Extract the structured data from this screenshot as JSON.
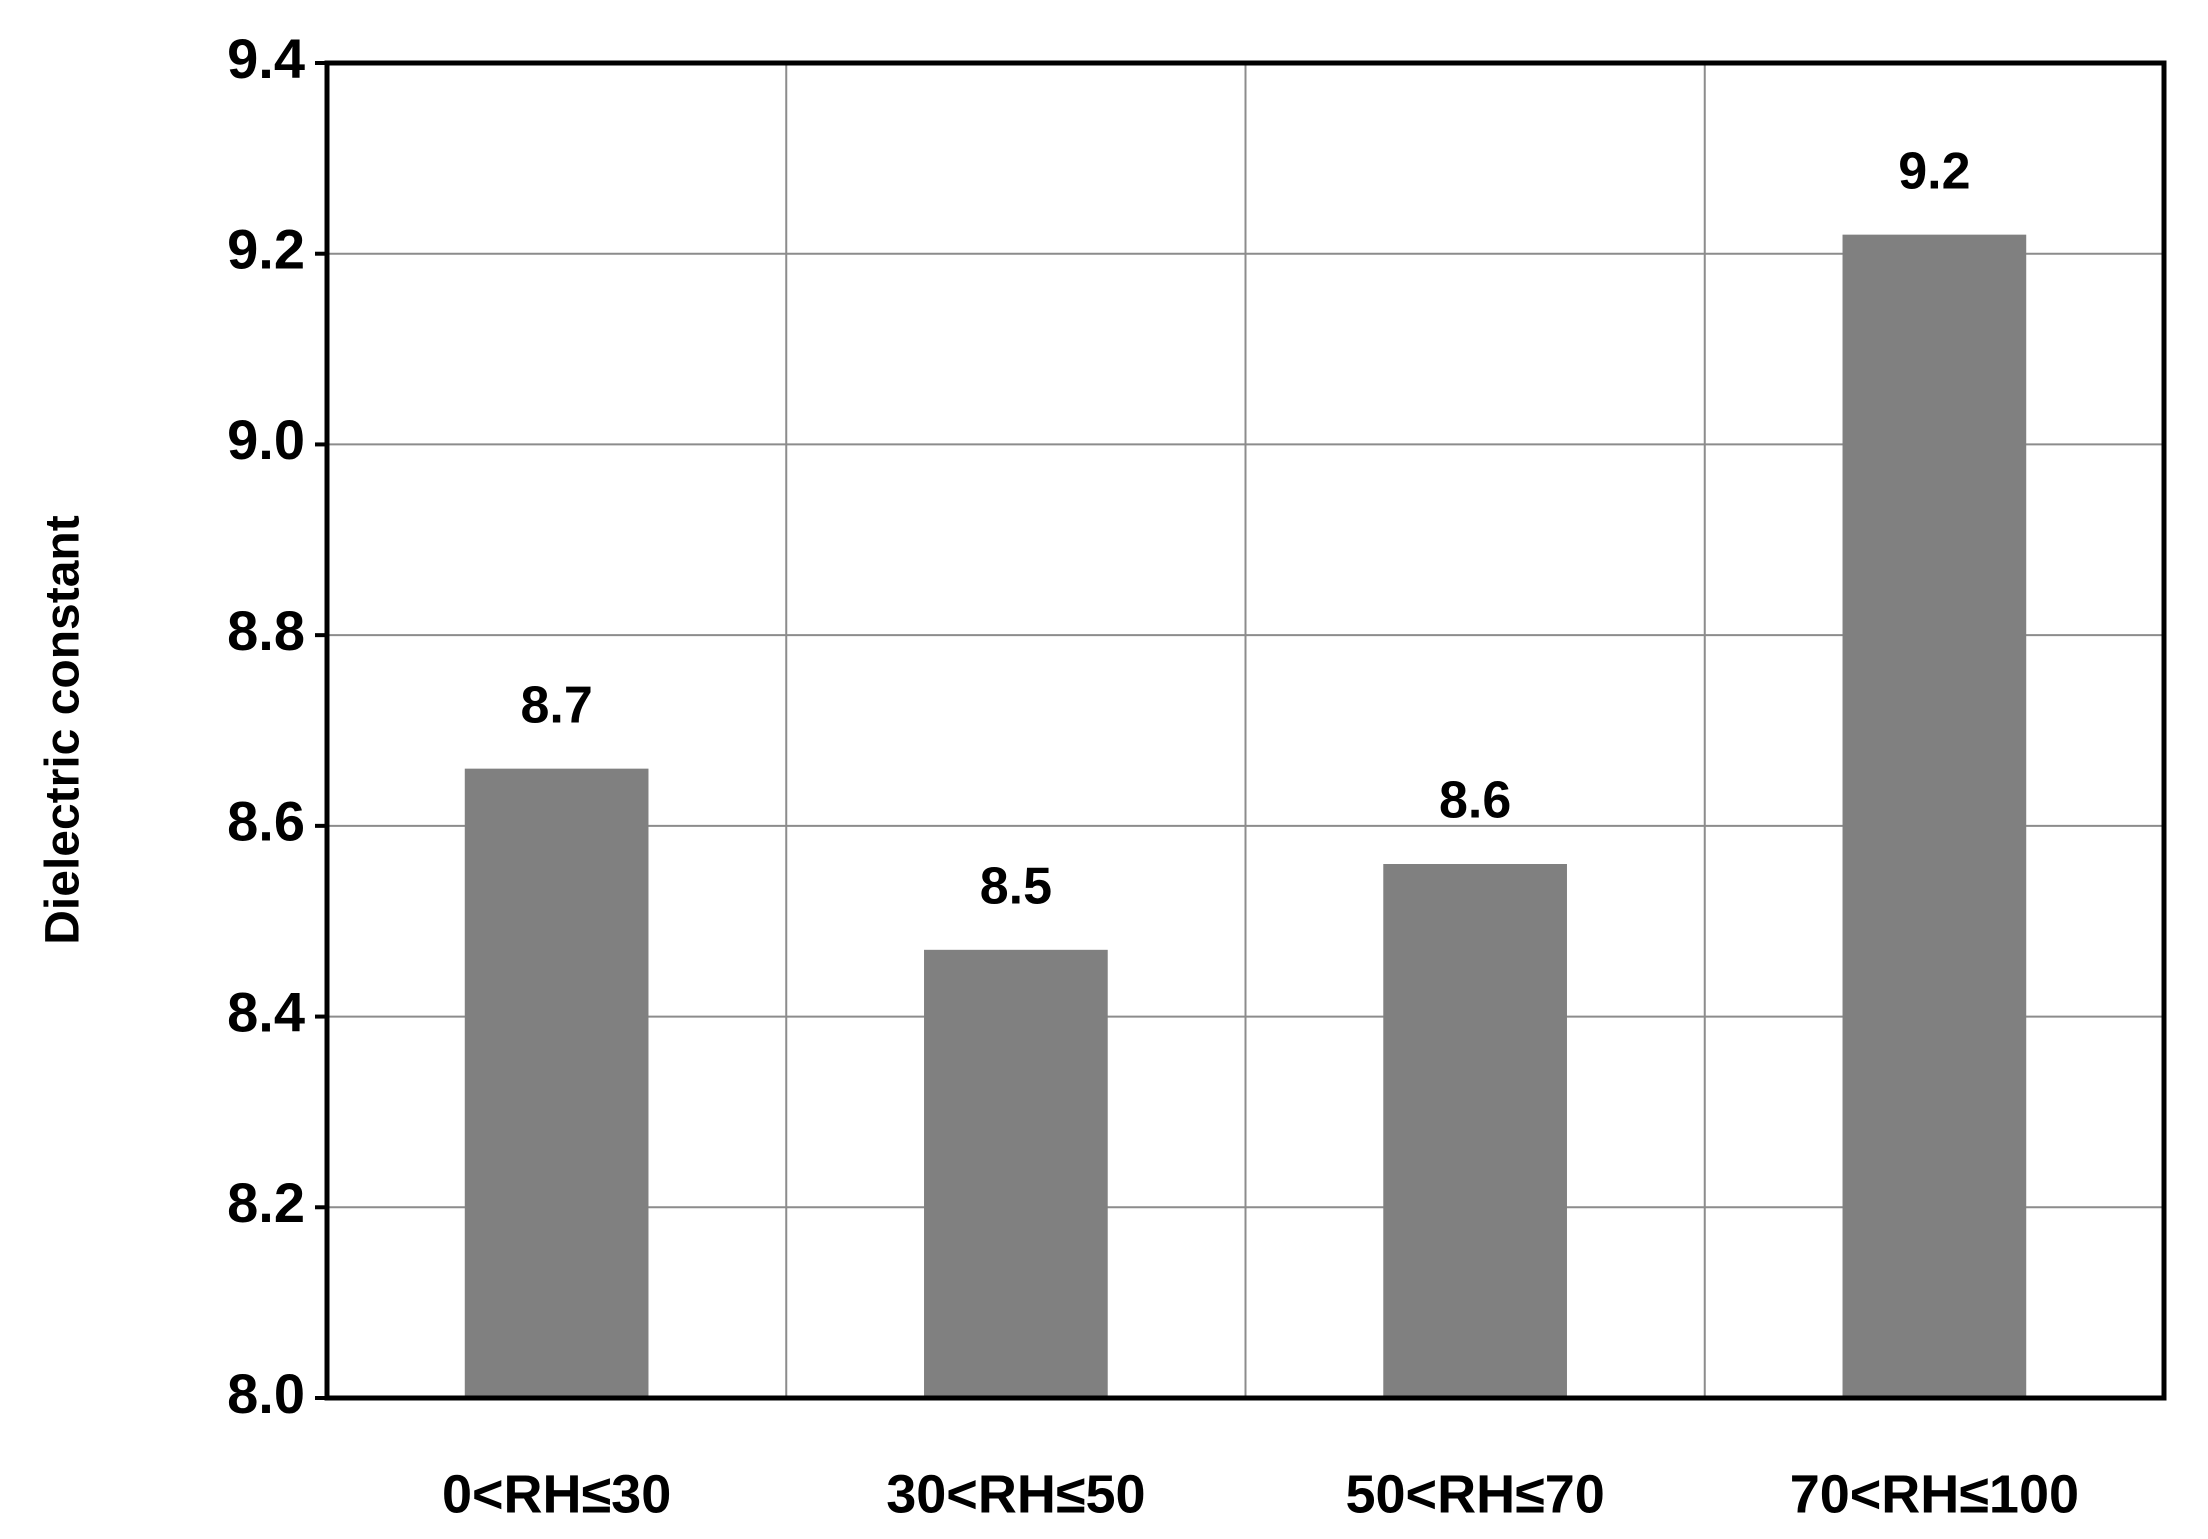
{
  "chart_data": {
    "type": "bar",
    "y_label": "Dielectric constant",
    "categories": [
      "0<RH≤30",
      "30<RH≤50",
      "50<RH≤70",
      "70<RH≤100"
    ],
    "values": [
      8.66,
      8.47,
      8.56,
      9.22
    ],
    "value_labels": [
      "8.7",
      "8.5",
      "8.6",
      "9.2"
    ],
    "color": "#808080",
    "ylim": [
      8.0,
      9.4
    ],
    "yticks": [
      {
        "value": 8.0,
        "label": "8.0"
      },
      8.2,
      8.4,
      8.6,
      8.8,
      {
        "value": 9.0,
        "label": "9.0"
      },
      9.2,
      9.4
    ],
    "grid": true
  }
}
